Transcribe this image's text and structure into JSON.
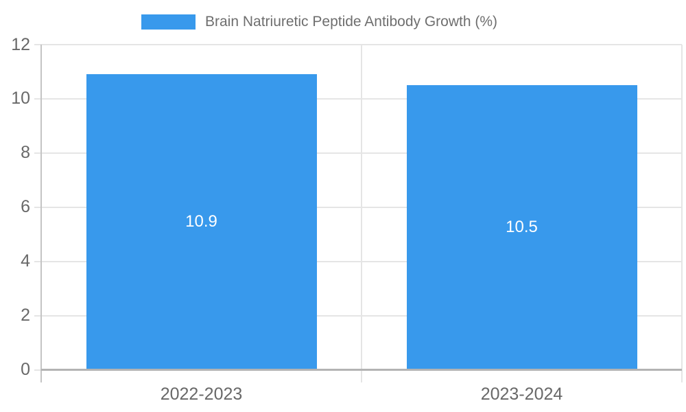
{
  "legend": {
    "label": "Brain Natriuretic Peptide Antibody Growth (%)"
  },
  "chart_data": {
    "type": "bar",
    "title": "",
    "xlabel": "",
    "ylabel": "",
    "categories": [
      "2022-2023",
      "2023-2024"
    ],
    "series": [
      {
        "name": "Brain Natriuretic Peptide Antibody Growth (%)",
        "values": [
          10.9,
          10.5
        ]
      }
    ],
    "data_labels": [
      "10.9",
      "10.5"
    ],
    "ylim": [
      0,
      12
    ],
    "yticks": [
      0,
      2,
      4,
      6,
      8,
      10,
      12
    ],
    "ytick_labels": [
      "0",
      "2",
      "4",
      "6",
      "8",
      "10",
      "12"
    ],
    "grid": true,
    "legend_position": "top",
    "colors": {
      "bar": "#3899EC",
      "data_label": "#FFFFFF",
      "tick_text": "#686868",
      "legend_text": "#6E6E6E",
      "gridline": "#E5E5E5",
      "axis_line": "#BDBDBD"
    }
  }
}
